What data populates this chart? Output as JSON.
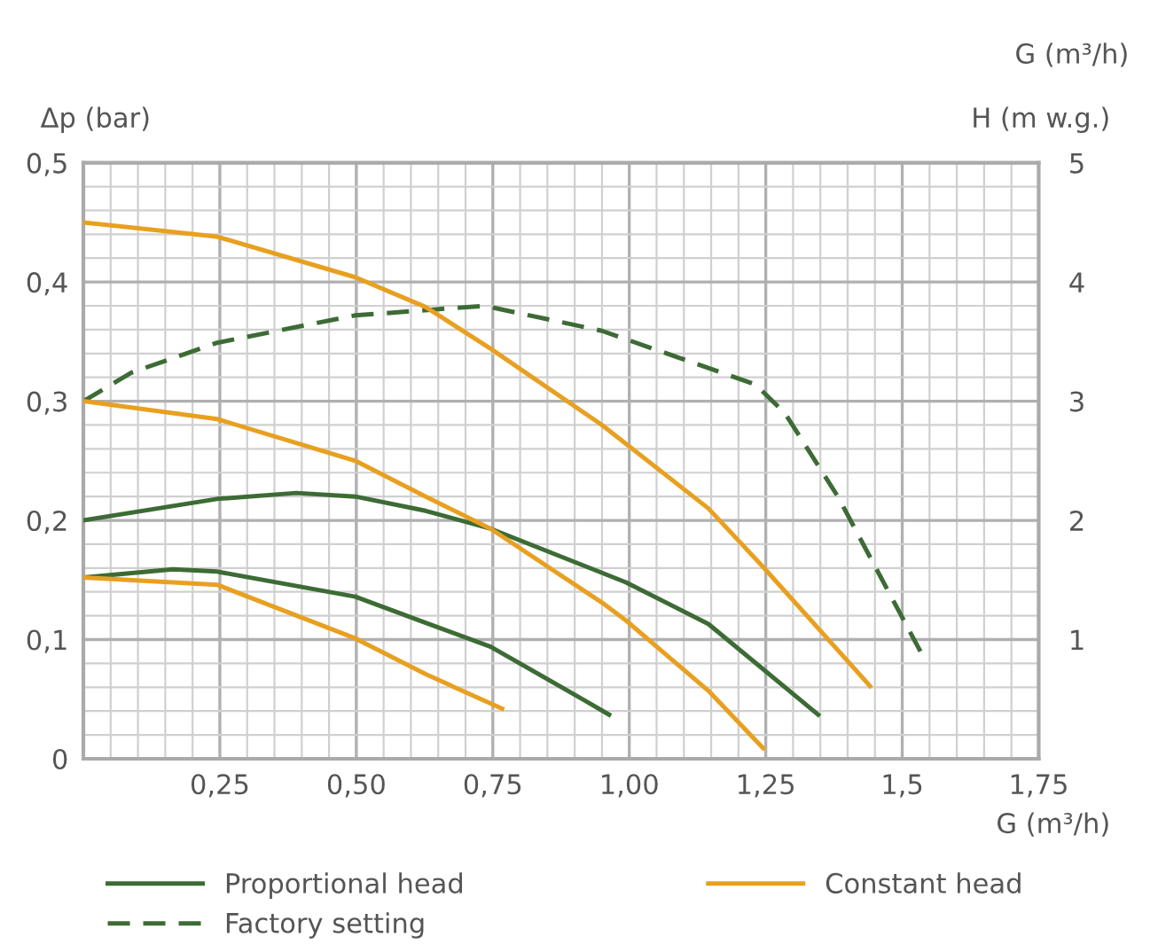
{
  "chart_data": {
    "type": "line",
    "xlabel": "G (m³/h)",
    "ylabel": "Δp (bar)",
    "y2label": "H (m w.g.)",
    "annotations": [
      "G (m³/h)"
    ],
    "xlim": [
      0,
      1.75
    ],
    "xticks": [
      {
        "value": 0.25,
        "label": "0,25"
      },
      {
        "value": 0.5,
        "label": "0,50"
      },
      {
        "value": 0.75,
        "label": "0,75"
      },
      {
        "value": 1.0,
        "label": "1,00"
      },
      {
        "value": 1.25,
        "label": "1,25"
      },
      {
        "value": 1.5,
        "label": "1,5"
      },
      {
        "value": 1.75,
        "label": "1,75"
      }
    ],
    "ylim": [
      0,
      0.5
    ],
    "yticks": [
      0,
      {
        "value": 0.1,
        "label": "0,1"
      },
      {
        "value": 0.2,
        "label": "0,2"
      },
      {
        "value": 0.3,
        "label": "0,3"
      },
      {
        "value": 0.4,
        "label": "0,4"
      },
      {
        "value": 0.5,
        "label": "0,5"
      }
    ],
    "y2lim": [
      0,
      5
    ],
    "y2ticks": [
      1,
      2,
      3,
      4,
      5
    ],
    "grid": true,
    "legend": "bottom",
    "marker": "none",
    "series": [
      {
        "name": "Proportional head",
        "color": "#3d6b35",
        "line_style": "solid",
        "x": [
          0,
          0.245,
          0.39,
          0.498,
          0.627,
          0.746,
          0.95,
          0.994,
          1.145,
          1.346
        ],
        "values": [
          0.2,
          0.218,
          0.223,
          0.22,
          0.208,
          0.193,
          0.156,
          0.148,
          0.113,
          0.037
        ]
      },
      {
        "color": "#3d6b35",
        "line_style": "solid",
        "x": [
          0,
          0.164,
          0.245,
          0.498,
          0.627,
          0.746,
          0.918,
          0.963
        ],
        "values": [
          0.152,
          0.159,
          0.157,
          0.136,
          0.114,
          0.094,
          0.049,
          0.037
        ]
      },
      {
        "name": "Factory setting",
        "color": "#3d6b35",
        "line_style": "dashed",
        "x": [
          0,
          0.088,
          0.245,
          0.498,
          0.735,
          0.95,
          1.231,
          1.285,
          1.382,
          1.468,
          1.538
        ],
        "values": [
          0.3,
          0.324,
          0.349,
          0.372,
          0.38,
          0.359,
          0.314,
          0.29,
          0.22,
          0.146,
          0.086
        ]
      },
      {
        "name": "Constant head",
        "color": "#e8a020",
        "line_style": "solid",
        "x": [
          0,
          0.245,
          0.498,
          0.627,
          0.746,
          0.95,
          1.145,
          1.245,
          1.441
        ],
        "values": [
          0.45,
          0.438,
          0.404,
          0.379,
          0.344,
          0.28,
          0.21,
          0.161,
          0.061
        ]
      },
      {
        "color": "#e8a020",
        "line_style": "solid",
        "x": [
          0,
          0.245,
          0.498,
          0.627,
          0.746,
          0.95,
          0.994,
          1.145,
          1.245
        ],
        "values": [
          0.3,
          0.285,
          0.25,
          0.22,
          0.193,
          0.131,
          0.116,
          0.057,
          0.009
        ]
      },
      {
        "color": "#e8a020",
        "line_style": "solid",
        "x": [
          0,
          0.245,
          0.498,
          0.627,
          0.767
        ],
        "values": [
          0.152,
          0.146,
          0.101,
          0.071,
          0.042
        ]
      }
    ]
  }
}
